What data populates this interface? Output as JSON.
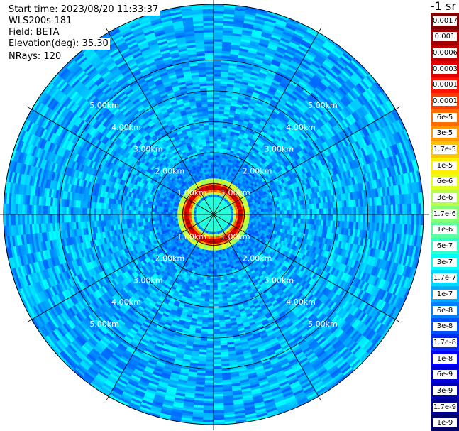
{
  "info": {
    "start_time": "Start time: 2023/08/20 11:33:37",
    "instrument": "WLS200s-181",
    "field": "Field: BETA",
    "elevation": "Elevation(deg): 35.30",
    "nrays": "NRays: 120"
  },
  "colorbar": {
    "unit": "-1 sr",
    "labels": [
      "0.0017",
      "0.001",
      "0.0006",
      "0.0003",
      "0.00017",
      "0.0001",
      "6e-5",
      "3e-5",
      "1.7e-5",
      "1e-5",
      "6e-6",
      "3e-6",
      "1.7e-6",
      "1e-6",
      "6e-7",
      "3e-7",
      "1.7e-7",
      "1e-7",
      "6e-8",
      "3e-8",
      "1.7e-8",
      "1e-8",
      "6e-9",
      "3e-9",
      "1.7e-9",
      "1e-9"
    ],
    "colors": [
      "#800000",
      "#a00000",
      "#c00000",
      "#e00000",
      "#ff1000",
      "#ff3c00",
      "#ff6c00",
      "#ff9800",
      "#ffc400",
      "#fff000",
      "#e0ff1c",
      "#b4ff48",
      "#88ff74",
      "#5cffa0",
      "#30ffcc",
      "#04fff8",
      "#00d8ff",
      "#00acff",
      "#0080ff",
      "#0054ff",
      "#0028ff",
      "#0000fc",
      "#0000d8",
      "#0000b4",
      "#000090",
      "#00006c"
    ]
  },
  "chart_data": {
    "type": "heatmap",
    "projection": "polar (PPI scan)",
    "field": "BETA",
    "range_rings_km": [
      1.0,
      2.0,
      3.0,
      4.0,
      5.0
    ],
    "ring_labels": [
      "1.00km",
      "2.00km",
      "3.00km",
      "4.00km",
      "5.00km"
    ],
    "rays": 120,
    "spokes_deg": [
      0,
      30,
      60,
      90,
      120,
      150,
      180,
      210,
      240,
      270,
      300,
      330
    ],
    "max_range_km": 6.8,
    "colormap": "jet",
    "background_level": "1.7e-7",
    "peak_ring_km": 0.9,
    "peak_level": "0.0003"
  }
}
